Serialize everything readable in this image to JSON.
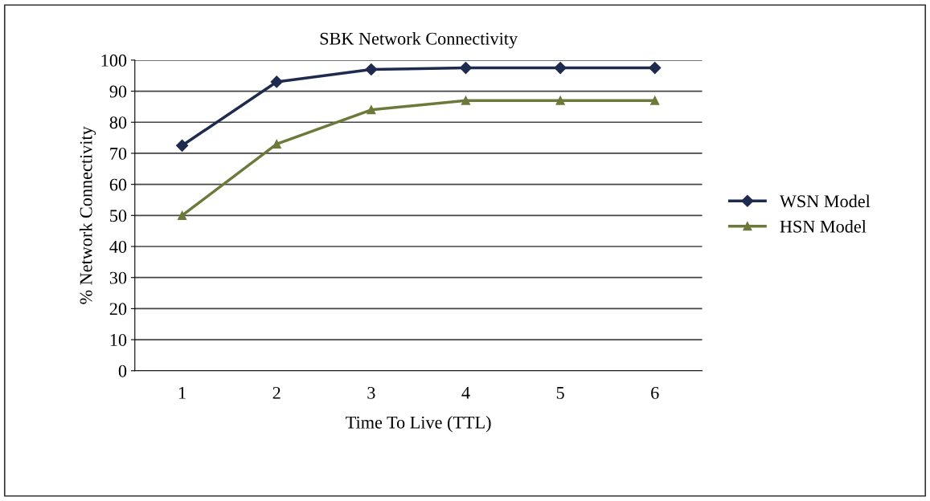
{
  "chart_data": {
    "type": "line",
    "title": "SBK Network Connectivity",
    "xlabel": "Time To Live (TTL)",
    "ylabel": "% Network Connectivity",
    "categories": [
      "1",
      "2",
      "3",
      "4",
      "5",
      "6"
    ],
    "series": [
      {
        "name": "WSN Model",
        "color": "#1f2a4f",
        "marker": "diamond",
        "values": [
          72.5,
          93,
          97,
          97.5,
          97.5,
          97.5
        ]
      },
      {
        "name": "HSN Model",
        "color": "#6b7a3a",
        "marker": "triangle",
        "values": [
          50,
          73,
          84,
          87,
          87,
          87
        ]
      }
    ],
    "ylim": [
      0,
      100
    ],
    "yticks": [
      0,
      10,
      20,
      30,
      40,
      50,
      60,
      70,
      80,
      90,
      100
    ],
    "grid": "y",
    "legend": "right"
  }
}
